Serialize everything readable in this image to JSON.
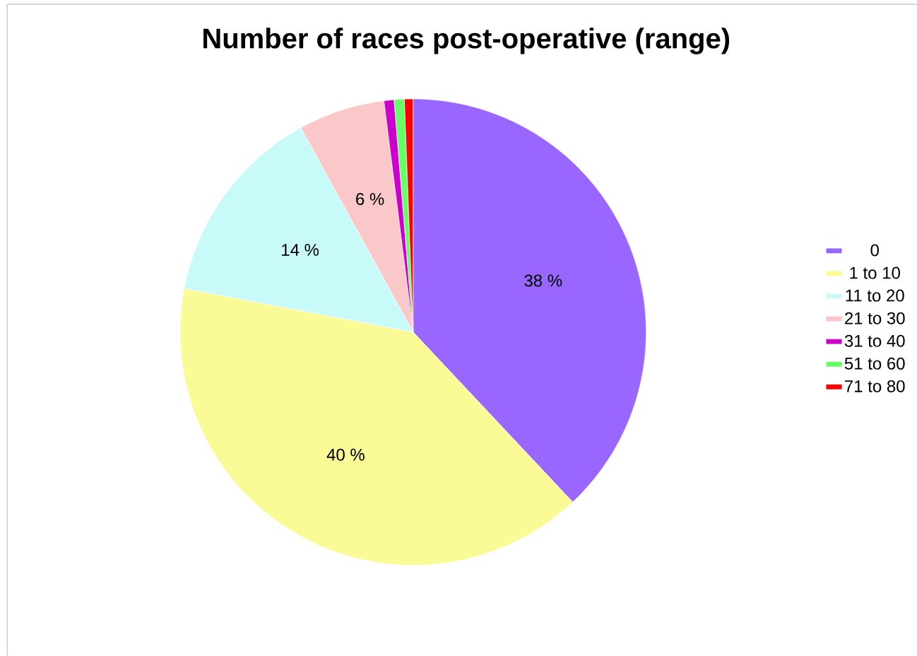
{
  "chart_data": {
    "type": "pie",
    "title": "Number of races post-operative (range)",
    "categories": [
      "0",
      "1 to 10",
      "11 to 20",
      "21 to 30",
      "31 to 40",
      "51 to 60",
      "71 to 80"
    ],
    "values": [
      38,
      40,
      14,
      6,
      0.7,
      0.7,
      0.6
    ],
    "value_labels": [
      "38 %",
      "40 %",
      "14 %",
      "6 %",
      null,
      null,
      null
    ],
    "colors": [
      "#9966ff",
      "#fafa96",
      "#c8fafa",
      "#fac8c8",
      "#cc00cc",
      "#66ff66",
      "#ff0000"
    ],
    "legend": "right"
  }
}
